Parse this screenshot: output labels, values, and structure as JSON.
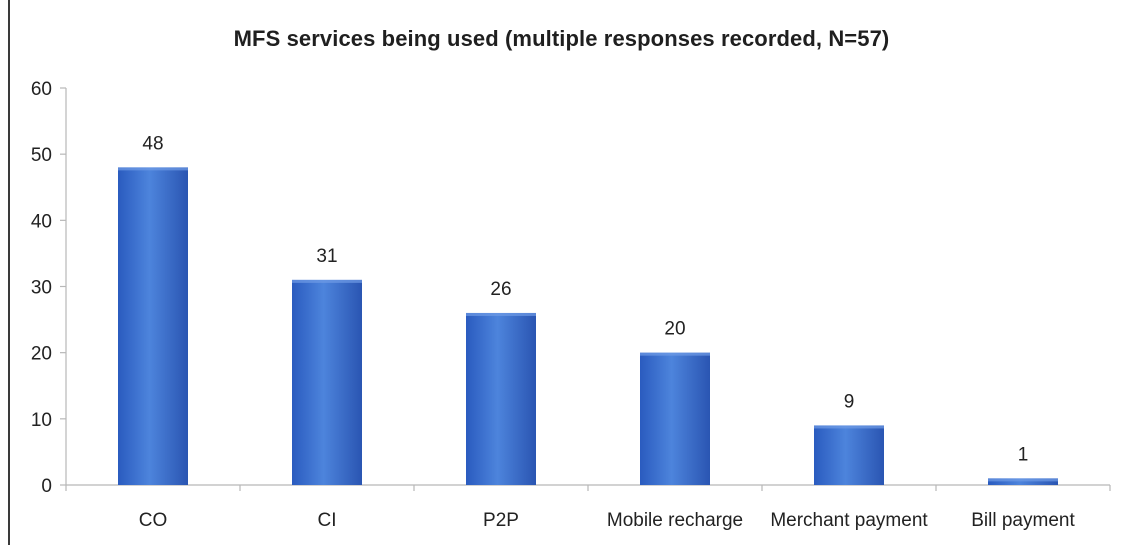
{
  "chart_data": {
    "type": "bar",
    "title": "MFS services being used (multiple responses recorded, N=57)",
    "categories": [
      "CO",
      "CI",
      "P2P",
      "Mobile recharge",
      "Merchant payment",
      "Bill payment"
    ],
    "values": [
      48,
      31,
      26,
      20,
      9,
      1
    ],
    "data_labels": [
      "48",
      "31",
      "26",
      "20",
      "9",
      "1"
    ],
    "ylim": [
      0,
      60
    ],
    "yticks": [
      "0",
      "10",
      "20",
      "30",
      "40",
      "50",
      "60"
    ],
    "xlabel": "",
    "ylabel": "",
    "grid": false,
    "legend": "none",
    "colors": {
      "bar_light": "#4a7fd6",
      "bar_dark": "#2450b0",
      "axis": "#b8b8b8",
      "text": "#222222"
    }
  }
}
